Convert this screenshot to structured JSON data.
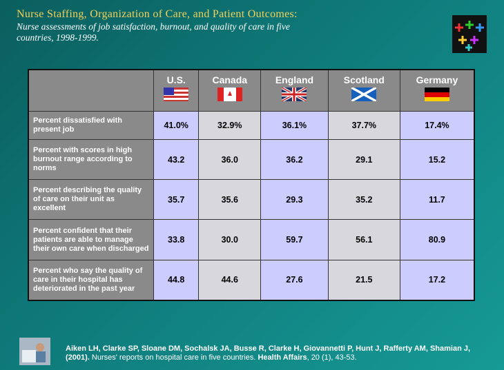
{
  "title": "Nurse Staffing, Organization of Care, and Patient Outcomes:",
  "subtitle": "Nurse assessments of job satisfaction, burnout, and quality of care in five countries, 1998-1999.",
  "table": {
    "columns": [
      "U.S.",
      "Canada",
      "England",
      "Scotland",
      "Germany"
    ],
    "rows": [
      {
        "label": "Percent dissatisfied with present job",
        "values": [
          "41.0%",
          "32.9%",
          "36.1%",
          "37.7%",
          "17.4%"
        ]
      },
      {
        "label": "Percent with scores in high burnout range according to norms",
        "values": [
          "43.2",
          "36.0",
          "36.2",
          "29.1",
          "15.2"
        ]
      },
      {
        "label": "Percent describing the quality of care on their unit as excellent",
        "values": [
          "35.7",
          "35.6",
          "29.3",
          "35.2",
          "11.7"
        ]
      },
      {
        "label": "Percent confident that their patients are able to manage their own care when discharged",
        "values": [
          "33.8",
          "30.0",
          "59.7",
          "56.1",
          "80.9"
        ]
      },
      {
        "label": "Percent who say the quality of care in their hospital has deteriorated in the past year",
        "values": [
          "44.8",
          "44.6",
          "27.6",
          "21.5",
          "17.2"
        ]
      }
    ]
  },
  "citation": [
    {
      "text": "Aiken LH, Clarke SP, Sloane DM, Sochalsk JA, Busse R, Clarke H, Giovannetti P, Hunt J, Rafferty AM, Shamian J, (2001).",
      "bold": true
    },
    {
      "text": " Nurses' reports on hospital care in five countries. ",
      "bold": false
    },
    {
      "text": "Health Affairs",
      "bold": true
    },
    {
      "text": ", 20 (1), 43-53.",
      "bold": false
    }
  ]
}
